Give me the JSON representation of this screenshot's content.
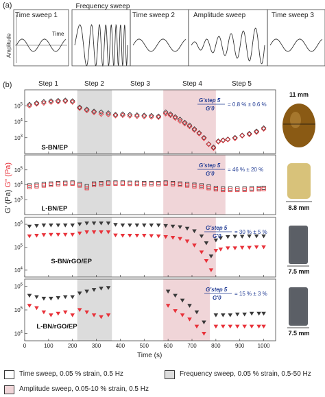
{
  "panel_a": {
    "label": "(a)",
    "y_label": "Amplitude",
    "x_label": "Time",
    "boxes": [
      "Time sweep 1",
      "Frequency sweep",
      "Time sweep 2",
      "Amplitude sweep",
      "Time sweep 3"
    ]
  },
  "panel_b": {
    "label": "(b)",
    "steps": [
      "Step 1",
      "Step 2",
      "Step 3",
      "Step 4",
      "Step 5"
    ],
    "y_axis_label_black": "G' (Pa)",
    "y_axis_label_red": "G'' (Pa)",
    "x_axis_label": "Time (s)",
    "x_ticks": [
      "0",
      "100",
      "200",
      "300",
      "400",
      "500",
      "600",
      "700",
      "800",
      "900",
      "1000"
    ]
  },
  "legend": {
    "time_sweep": "Time sweep, 0.05 % strain, 0.5 Hz",
    "frequency_sweep": "Frequency sweep, 0.05 % strain, 0.5-50 Hz",
    "amplitude_sweep": "Amplitude sweep, 0.05-10 % strain, 0.5 Hz"
  },
  "colors": {
    "black_series": "#3a3a3a",
    "red_series": "#e8323a",
    "frequency_shade": "#dcdcdc",
    "amplitude_shade": "#f0d5d8",
    "ratio_text": "#1f3a93"
  },
  "chart_data": [
    {
      "type": "scatter",
      "sample": "S-BN/EP",
      "marker": "diamond-open",
      "ratio_label": "G'step 5 / G'0 = 0.8 % ± 0.6 %",
      "ratio_text": "= 0.8 % ± 0.6 %",
      "photo_caption": "11 mm",
      "y_ticks": [
        "10^5",
        "10^4",
        "10^3"
      ],
      "ylim": [
        100,
        1000000
      ],
      "series": [
        {
          "name": "G'",
          "color": "black",
          "x": [
            20,
            50,
            80,
            110,
            140,
            170,
            200,
            230,
            260,
            290,
            320,
            350,
            380,
            410,
            440,
            470,
            500,
            530,
            560,
            590,
            610,
            630,
            650,
            670,
            690,
            710,
            730,
            750,
            770,
            790,
            810,
            830,
            850,
            880,
            910,
            940,
            970,
            1000
          ],
          "y": [
            120000,
            150000,
            180000,
            200000,
            210000,
            220000,
            200000,
            80000,
            60000,
            45000,
            40000,
            35000,
            28000,
            30000,
            28000,
            26000,
            25000,
            24000,
            22000,
            40000,
            30000,
            20000,
            14000,
            9000,
            6000,
            3500,
            2000,
            1000,
            400,
            250,
            600,
            700,
            800,
            1000,
            1400,
            1800,
            2500,
            4000
          ]
        },
        {
          "name": "G''",
          "color": "red",
          "x": [
            20,
            50,
            80,
            110,
            140,
            170,
            200,
            230,
            260,
            290,
            320,
            350,
            380,
            410,
            440,
            470,
            500,
            530,
            560,
            590,
            610,
            630,
            650,
            670,
            690,
            710,
            730,
            750,
            770,
            790,
            810,
            830,
            850,
            880,
            910,
            940,
            970,
            1000
          ],
          "y": [
            100000,
            130000,
            150000,
            170000,
            180000,
            190000,
            170000,
            70000,
            50000,
            38000,
            30000,
            28000,
            24000,
            25000,
            23000,
            22000,
            21000,
            20000,
            19000,
            32000,
            25000,
            17000,
            11000,
            7500,
            5000,
            3000,
            1800,
            900,
            380,
            220,
            550,
            650,
            750,
            900,
            1300,
            1600,
            2200,
            3500
          ]
        }
      ]
    },
    {
      "type": "scatter",
      "sample": "L-BN/EP",
      "marker": "square-open",
      "ratio_label": "G'step 5 / G'0 = 46 % ± 20 %",
      "ratio_text": "= 46 % ± 20 %",
      "photo_caption": "8.8 mm",
      "y_ticks": [
        "10^5",
        "10^4",
        "10^3"
      ],
      "ylim": [
        100,
        1000000
      ],
      "series": [
        {
          "name": "G'",
          "color": "black",
          "x": [
            20,
            50,
            80,
            110,
            140,
            170,
            200,
            230,
            260,
            290,
            320,
            350,
            380,
            410,
            440,
            470,
            500,
            530,
            560,
            590,
            620,
            650,
            680,
            710,
            740,
            770,
            800,
            830,
            860,
            890,
            920,
            950,
            980,
            1000
          ],
          "y": [
            9000,
            10000,
            11000,
            12000,
            13000,
            13500,
            14000,
            11000,
            8000,
            12000,
            13000,
            14000,
            14000,
            14000,
            13500,
            13500,
            13000,
            13000,
            13000,
            14000,
            13000,
            12000,
            11000,
            10000,
            9000,
            7500,
            6000,
            5500,
            5500,
            5500,
            5600,
            5800,
            6000,
            6200
          ]
        },
        {
          "name": "G''",
          "color": "red",
          "x": [
            20,
            50,
            80,
            110,
            140,
            170,
            200,
            230,
            260,
            290,
            320,
            350,
            380,
            410,
            440,
            470,
            500,
            530,
            560,
            590,
            620,
            650,
            680,
            710,
            740,
            770,
            800,
            830,
            860,
            890,
            920,
            950,
            980,
            1000
          ],
          "y": [
            7000,
            8000,
            9000,
            10000,
            11000,
            11500,
            12000,
            9000,
            6000,
            10000,
            11000,
            12000,
            12000,
            12000,
            11500,
            11500,
            11000,
            11000,
            11000,
            12000,
            11000,
            10000,
            9000,
            8000,
            7000,
            6000,
            5000,
            4500,
            4500,
            4500,
            4600,
            4800,
            5000,
            5200
          ]
        }
      ]
    },
    {
      "type": "scatter",
      "sample": "S-BN/rGO/EP",
      "marker": "triangle-filled",
      "ratio_label": "G'step 5 / G'0 = 30 % ± 5 %",
      "ratio_text": "= 30 % ± 5 %",
      "photo_caption": "7.5 mm",
      "y_ticks": [
        "10^6",
        "10^5",
        "10^4"
      ],
      "ylim": [
        5000,
        2000000
      ],
      "series": [
        {
          "name": "G'",
          "color": "black",
          "x": [
            20,
            50,
            80,
            110,
            140,
            170,
            200,
            230,
            260,
            290,
            320,
            350,
            380,
            410,
            440,
            470,
            500,
            530,
            560,
            590,
            620,
            650,
            680,
            710,
            740,
            760,
            780,
            800,
            820,
            850,
            880,
            910,
            940,
            970,
            1000
          ],
          "y": [
            800000,
            850000,
            900000,
            900000,
            900000,
            900000,
            900000,
            1000000,
            1100000,
            1100000,
            1100000,
            1100000,
            950000,
            900000,
            900000,
            900000,
            900000,
            900000,
            900000,
            850000,
            800000,
            750000,
            650000,
            500000,
            300000,
            150000,
            40000,
            200000,
            250000,
            280000,
            290000,
            290000,
            300000,
            300000,
            300000
          ]
        },
        {
          "name": "G''",
          "color": "red",
          "x": [
            20,
            50,
            80,
            110,
            140,
            170,
            200,
            230,
            260,
            290,
            320,
            350,
            380,
            410,
            440,
            470,
            500,
            530,
            560,
            590,
            620,
            650,
            680,
            710,
            740,
            760,
            780,
            800,
            820,
            850,
            880,
            910,
            940,
            970,
            1000
          ],
          "y": [
            300000,
            320000,
            340000,
            350000,
            350000,
            350000,
            350000,
            400000,
            450000,
            450000,
            450000,
            450000,
            330000,
            320000,
            320000,
            320000,
            320000,
            310000,
            300000,
            280000,
            260000,
            230000,
            180000,
            120000,
            60000,
            25000,
            10000,
            70000,
            80000,
            90000,
            90000,
            95000,
            95000,
            100000,
            100000
          ]
        }
      ]
    },
    {
      "type": "scatter",
      "sample": "L-BN/rGO/EP",
      "marker": "triangle-filled",
      "ratio_label": "G'step 5 / G'0 = 15 % ± 3 %",
      "ratio_text": "= 15 % ± 3 %",
      "photo_caption": "7.5 mm",
      "y_ticks": [
        "10^6",
        "10^5",
        "10^4"
      ],
      "ylim": [
        5000,
        2000000
      ],
      "series": [
        {
          "name": "G'",
          "color": "black",
          "x": [
            20,
            50,
            80,
            110,
            140,
            170,
            200,
            230,
            260,
            290,
            320,
            350,
            600,
            630,
            660,
            690,
            720,
            750,
            800,
            830,
            860,
            890,
            920,
            950,
            980,
            1000
          ],
          "y": [
            400000,
            350000,
            300000,
            300000,
            320000,
            350000,
            350000,
            500000,
            600000,
            700000,
            800000,
            850000,
            600000,
            400000,
            250000,
            150000,
            80000,
            30000,
            60000,
            60000,
            60000,
            65000,
            65000,
            70000,
            70000,
            70000
          ]
        },
        {
          "name": "G''",
          "color": "red",
          "x": [
            20,
            50,
            80,
            110,
            140,
            170,
            200,
            230,
            260,
            290,
            320,
            350,
            600,
            630,
            660,
            690,
            720,
            750,
            800,
            830,
            860,
            890,
            920,
            950,
            980,
            1000
          ],
          "y": [
            150000,
            120000,
            80000,
            60000,
            70000,
            80000,
            60000,
            100000,
            80000,
            60000,
            50000,
            60000,
            150000,
            90000,
            60000,
            40000,
            20000,
            10000,
            20000,
            20000,
            20000,
            20000,
            20000,
            20000,
            20000,
            20000
          ]
        }
      ]
    }
  ]
}
